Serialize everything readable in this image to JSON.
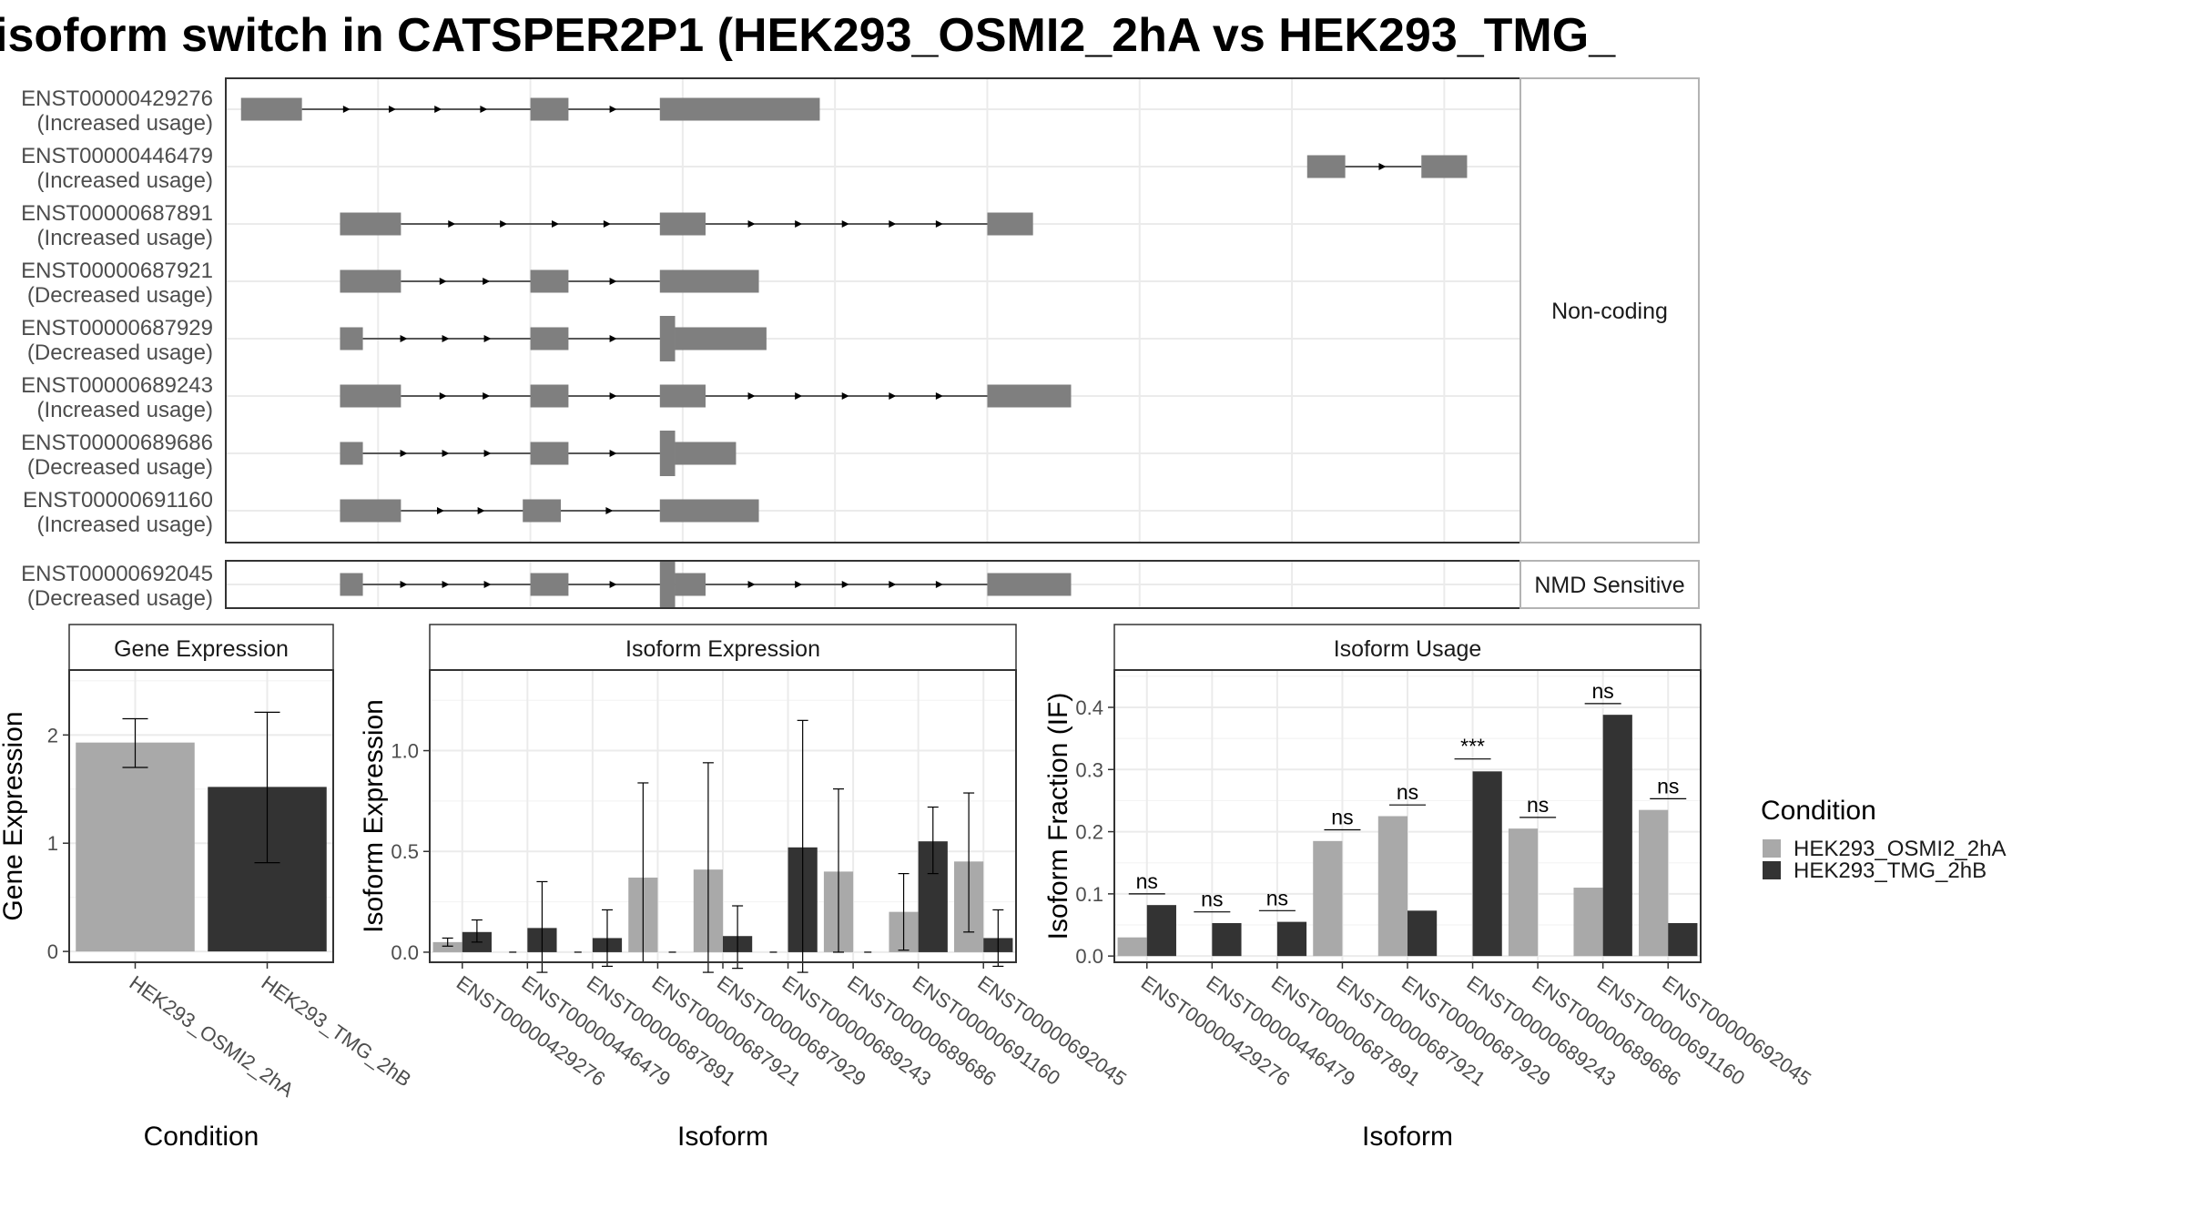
{
  "figure": {
    "title": "isoform switch in CATSPER2P1 (HEK293_OSMI2_2hA vs HEK293_TMG_"
  },
  "colors": {
    "exon": "#7f7f7f",
    "grid": "#ebebeb",
    "condition_a": "#a9a9a9",
    "condition_b": "#333333",
    "strip_bg": "#ffffff",
    "panel_border": "#333333"
  },
  "structure": {
    "facets": [
      {
        "label": "Non-coding",
        "transcripts": [
          {
            "id": "ENST00000429276",
            "usage": "(Increased usage)",
            "exons": [
              [
                0.02,
                0.1
              ],
              [
                0.4,
                0.45
              ],
              [
                0.57,
                0.78
              ]
            ]
          },
          {
            "id": "ENST00000446479",
            "usage": "(Increased usage)",
            "exons": [
              [
                1.42,
                1.47
              ],
              [
                1.57,
                1.63
              ]
            ]
          },
          {
            "id": "ENST00000687891",
            "usage": "(Increased usage)",
            "exons": [
              [
                0.15,
                0.23
              ],
              [
                0.57,
                0.63
              ],
              [
                1.0,
                1.06
              ]
            ]
          },
          {
            "id": "ENST00000687921",
            "usage": "(Decreased usage)",
            "exons": [
              [
                0.15,
                0.23
              ],
              [
                0.4,
                0.45
              ],
              [
                0.57,
                0.7
              ]
            ]
          },
          {
            "id": "ENST00000687929",
            "usage": "(Decreased usage)",
            "exons": [
              [
                0.15,
                0.18
              ],
              [
                0.4,
                0.45
              ],
              [
                0.57,
                0.59
              ],
              [
                0.59,
                0.71
              ]
            ]
          },
          {
            "id": "ENST00000689243",
            "usage": "(Increased usage)",
            "exons": [
              [
                0.15,
                0.23
              ],
              [
                0.4,
                0.45
              ],
              [
                0.57,
                0.63
              ],
              [
                1.0,
                1.11
              ]
            ]
          },
          {
            "id": "ENST00000689686",
            "usage": "(Decreased usage)",
            "exons": [
              [
                0.15,
                0.18
              ],
              [
                0.4,
                0.45
              ],
              [
                0.57,
                0.59
              ],
              [
                0.59,
                0.67
              ]
            ]
          },
          {
            "id": "ENST00000691160",
            "usage": "(Increased usage)",
            "exons": [
              [
                0.15,
                0.23
              ],
              [
                0.39,
                0.44
              ],
              [
                0.57,
                0.7
              ]
            ]
          }
        ]
      },
      {
        "label": "NMD Sensitive",
        "transcripts": [
          {
            "id": "ENST00000692045",
            "usage": "(Decreased usage)",
            "exons": [
              [
                0.15,
                0.18
              ],
              [
                0.4,
                0.45
              ],
              [
                0.57,
                0.59
              ],
              [
                0.59,
                0.63
              ],
              [
                1.0,
                1.11
              ]
            ]
          }
        ]
      }
    ],
    "xlim": [
      0,
      1.7
    ]
  },
  "legend": {
    "title": "Condition",
    "items": [
      {
        "label": "HEK293_OSMI2_2hA",
        "color": "#a9a9a9"
      },
      {
        "label": "HEK293_TMG_2hB",
        "color": "#333333"
      }
    ]
  },
  "chart_data": [
    {
      "type": "bar",
      "title": "Gene Expression",
      "xlabel": "Condition",
      "ylabel": "Gene Expression",
      "categories": [
        "HEK293_OSMI2_2hA",
        "HEK293_TMG_2hB"
      ],
      "values": [
        1.93,
        1.52
      ],
      "errors": [
        [
          1.7,
          2.15
        ],
        [
          0.82,
          2.21
        ]
      ],
      "ylim": [
        -0.1,
        2.6
      ],
      "yticks": [
        0,
        1,
        2
      ]
    },
    {
      "type": "bar",
      "title": "Isoform Expression",
      "xlabel": "Isoform",
      "ylabel": "Isoform Expression",
      "categories": [
        "ENST00000429276",
        "ENST00000446479",
        "ENST00000687891",
        "ENST00000687921",
        "ENST00000687929",
        "ENST00000689243",
        "ENST00000689686",
        "ENST00000691160",
        "ENST00000692045"
      ],
      "series": [
        {
          "name": "HEK293_OSMI2_2hA",
          "values": [
            0.05,
            0,
            0,
            0.37,
            0.41,
            0,
            0.4,
            0.2,
            0.45
          ],
          "errors": [
            [
              0.03,
              0.07
            ],
            null,
            null,
            [
              -0.05,
              0.84
            ],
            [
              -0.1,
              0.94
            ],
            null,
            [
              0,
              0.81
            ],
            [
              0.01,
              0.39
            ],
            [
              0.1,
              0.79
            ]
          ]
        },
        {
          "name": "HEK293_TMG_2hB",
          "values": [
            0.1,
            0.12,
            0.07,
            0,
            0.08,
            0.52,
            0,
            0.55,
            0.07
          ],
          "errors": [
            [
              0.05,
              0.16
            ],
            [
              -0.1,
              0.35
            ],
            [
              -0.07,
              0.21
            ],
            null,
            [
              -0.08,
              0.23
            ],
            [
              -0.1,
              1.15
            ],
            null,
            [
              0.39,
              0.72
            ],
            [
              -0.07,
              0.21
            ]
          ]
        }
      ],
      "ylim": [
        -0.05,
        1.4
      ],
      "yticks": [
        0.0,
        0.5,
        1.0
      ]
    },
    {
      "type": "bar",
      "title": "Isoform Usage",
      "xlabel": "Isoform",
      "ylabel": "Isoform Fraction (IF)",
      "categories": [
        "ENST00000429276",
        "ENST00000446479",
        "ENST00000687891",
        "ENST00000687921",
        "ENST00000687929",
        "ENST00000689243",
        "ENST00000689686",
        "ENST00000691160",
        "ENST00000692045"
      ],
      "series": [
        {
          "name": "HEK293_OSMI2_2hA",
          "values": [
            0.03,
            0,
            0,
            0.185,
            0.225,
            0,
            0.205,
            0.11,
            0.235
          ]
        },
        {
          "name": "HEK293_TMG_2hB",
          "values": [
            0.082,
            0.053,
            0.055,
            0,
            0.073,
            0.297,
            0,
            0.388,
            0.053
          ]
        }
      ],
      "significance": [
        {
          "index": 0,
          "label": "ns",
          "y": 0.1
        },
        {
          "index": 1,
          "label": "ns",
          "y": 0.071
        },
        {
          "index": 2,
          "label": "ns",
          "y": 0.073
        },
        {
          "index": 3,
          "label": "ns",
          "y": 0.203
        },
        {
          "index": 4,
          "label": "ns",
          "y": 0.243
        },
        {
          "index": 5,
          "label": "***",
          "y": 0.317
        },
        {
          "index": 6,
          "label": "ns",
          "y": 0.223
        },
        {
          "index": 7,
          "label": "ns",
          "y": 0.406
        },
        {
          "index": 8,
          "label": "ns",
          "y": 0.253
        }
      ],
      "ylim": [
        -0.01,
        0.46
      ],
      "yticks": [
        0.0,
        0.1,
        0.2,
        0.3,
        0.4
      ]
    }
  ]
}
